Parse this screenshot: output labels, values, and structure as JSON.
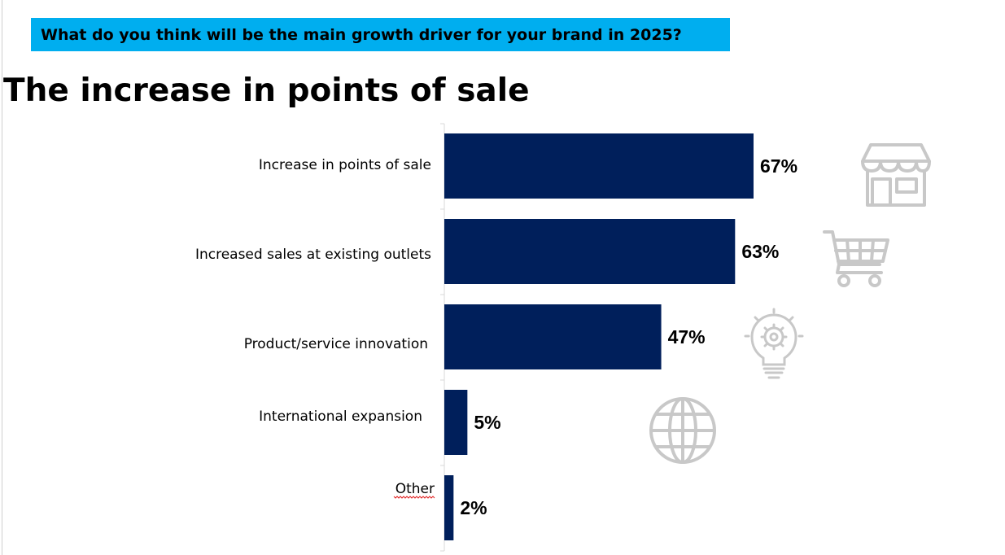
{
  "header": {
    "question": "What do you think will be the main growth driver for your brand in 2025?",
    "headline": "The increase in points of sale"
  },
  "colors": {
    "bar": "#001f5b",
    "banner": "#00aeef",
    "icon": "#c8c8c8"
  },
  "chart_data": {
    "type": "bar",
    "orientation": "horizontal",
    "categories": [
      "Increase in points of sale",
      "Increased sales at existing outlets",
      "Product/service innovation",
      "International expansion",
      "Other"
    ],
    "values": [
      67,
      63,
      47,
      5,
      2
    ],
    "value_labels": [
      "67%",
      "63%",
      "47%",
      "5%",
      "2%"
    ],
    "unit": "%",
    "xlim": [
      0,
      100
    ],
    "grid": false,
    "legend": "none"
  },
  "icons": [
    "store-icon",
    "shopping-cart-icon",
    "lightbulb-gear-icon",
    "globe-icon"
  ]
}
